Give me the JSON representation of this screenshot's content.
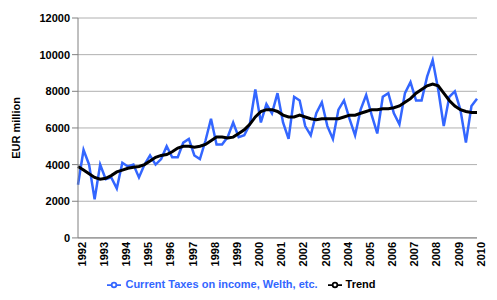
{
  "chart_data": {
    "type": "line",
    "ylabel": "EUR million",
    "categories": [
      "1992",
      null,
      null,
      null,
      "1993",
      null,
      null,
      null,
      "1994",
      null,
      null,
      null,
      "1995",
      null,
      null,
      null,
      "1996",
      null,
      null,
      null,
      "1997",
      null,
      null,
      null,
      "1998",
      null,
      null,
      null,
      "1999",
      null,
      null,
      null,
      "2000",
      null,
      null,
      null,
      "2001",
      null,
      null,
      null,
      "2002",
      null,
      null,
      null,
      "2003",
      null,
      null,
      null,
      "2004",
      null,
      null,
      null,
      "2005",
      null,
      null,
      null,
      "2006",
      null,
      null,
      null,
      "2007",
      null,
      null,
      null,
      "2008",
      null,
      null,
      null,
      "2009",
      null,
      null,
      null,
      "2010"
    ],
    "series": [
      {
        "name": "Current Taxes on income, Welth, etc.",
        "color": "#3366ff",
        "values": [
          2900,
          4800,
          4000,
          2100,
          4000,
          3200,
          3300,
          2700,
          4100,
          3900,
          4000,
          3300,
          4000,
          4500,
          4000,
          4300,
          5000,
          4400,
          4400,
          5200,
          5400,
          4500,
          4300,
          5300,
          6500,
          5100,
          5100,
          5500,
          6300,
          5500,
          5600,
          6200,
          8100,
          6300,
          7300,
          6800,
          7900,
          6300,
          5400,
          7700,
          7500,
          6100,
          5600,
          6800,
          7400,
          6100,
          5400,
          7000,
          7500,
          6500,
          5600,
          7000,
          7800,
          6700,
          5700,
          7700,
          7900,
          6800,
          6200,
          7900,
          8500,
          7500,
          7500,
          8800,
          9700,
          8100,
          6100,
          7700,
          8000,
          7000,
          5200,
          7200,
          7600
        ]
      },
      {
        "name": "Trend",
        "color": "#000000",
        "values": [
          3900,
          3700,
          3500,
          3300,
          3200,
          3250,
          3400,
          3600,
          3700,
          3800,
          3850,
          3900,
          4000,
          4200,
          4400,
          4500,
          4550,
          4700,
          4900,
          5000,
          5000,
          4950,
          5000,
          5100,
          5300,
          5500,
          5500,
          5450,
          5500,
          5700,
          5900,
          6200,
          6600,
          6900,
          7000,
          7000,
          6900,
          6700,
          6600,
          6600,
          6700,
          6600,
          6500,
          6450,
          6500,
          6500,
          6500,
          6500,
          6600,
          6700,
          6700,
          6800,
          6900,
          7000,
          7000,
          7050,
          7050,
          7100,
          7200,
          7400,
          7600,
          7900,
          8100,
          8300,
          8400,
          8300,
          7900,
          7500,
          7200,
          7000,
          6900,
          6850,
          6850
        ]
      }
    ],
    "ylim": [
      0,
      12000
    ],
    "yticks": [
      0,
      2000,
      4000,
      6000,
      8000,
      10000,
      12000
    ],
    "grid": true,
    "legend": "bottom"
  }
}
